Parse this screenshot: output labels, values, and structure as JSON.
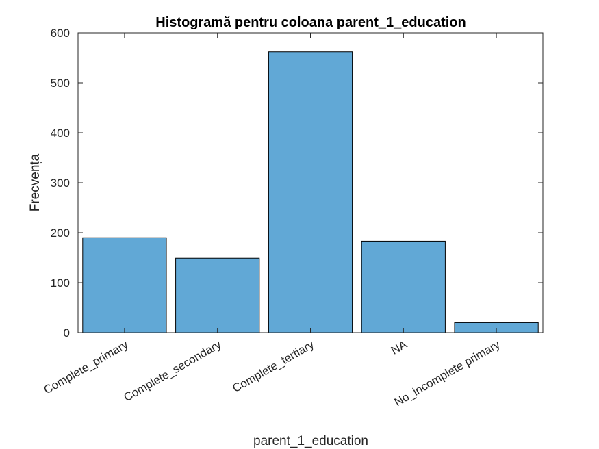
{
  "chart_data": {
    "type": "bar",
    "title": "Histogramă pentru coloana parent_1_education",
    "xlabel": "parent_1_education",
    "ylabel": "Frecvența",
    "categories": [
      "Complete_primary",
      "Complete_secondary",
      "Complete_tertiary",
      "NA",
      "No_incomplete primary"
    ],
    "values": [
      190,
      149,
      562,
      183,
      20
    ],
    "ylim": [
      0,
      600
    ],
    "yticks": [
      0,
      100,
      200,
      300,
      400,
      500,
      600
    ],
    "grid": false,
    "bar_color": "#61a8d6",
    "edge_color": "#000000"
  }
}
